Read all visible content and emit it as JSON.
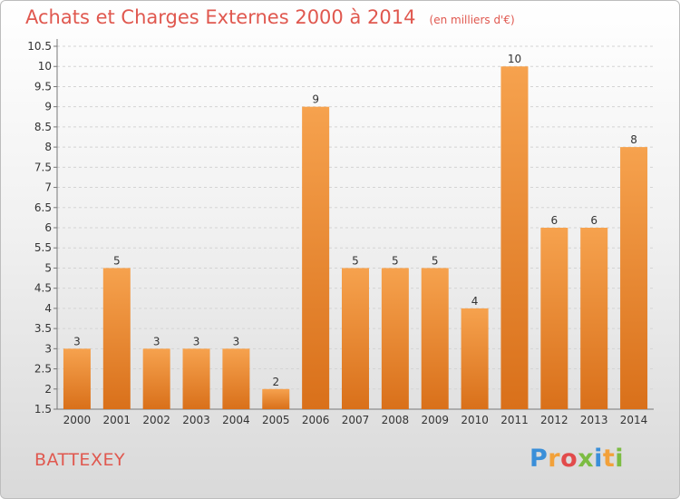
{
  "title": "Achats et Charges Externes 2000 à 2014",
  "unit": "(en milliers d'€)",
  "region": "BATTEXEY",
  "logo": {
    "letters": [
      "P",
      "r",
      "o",
      "x",
      "i",
      "t",
      "i"
    ],
    "colors": [
      "#3a8fd9",
      "#f2a13a",
      "#e24b4b",
      "#7cbc42",
      "#3a8fd9",
      "#f2a13a",
      "#7cbc42"
    ]
  },
  "colors": {
    "bar_top": "#f6a24e",
    "bar_bottom": "#d9701a",
    "title": "#e0584f"
  },
  "chart_data": {
    "type": "bar",
    "categories": [
      "2000",
      "2001",
      "2002",
      "2003",
      "2004",
      "2005",
      "2006",
      "2007",
      "2008",
      "2009",
      "2010",
      "2011",
      "2012",
      "2013",
      "2014"
    ],
    "values": [
      3,
      5,
      3,
      3,
      3,
      2,
      9,
      5,
      5,
      5,
      4,
      10,
      6,
      6,
      8
    ],
    "data_labels": [
      "3",
      "5",
      "3",
      "3",
      "3",
      "2",
      "9",
      "5",
      "5",
      "5",
      "4",
      "10",
      "6",
      "6",
      "8"
    ],
    "ylim": [
      1.5,
      10.5
    ],
    "yticks": [
      "1.5",
      "2",
      "2.5",
      "3",
      "3.5",
      "4",
      "4.5",
      "5",
      "5.5",
      "6",
      "6.5",
      "7",
      "7.5",
      "8",
      "8.5",
      "9",
      "9.5",
      "10",
      "10.5"
    ],
    "grid": true,
    "xlabel": "",
    "ylabel": ""
  }
}
